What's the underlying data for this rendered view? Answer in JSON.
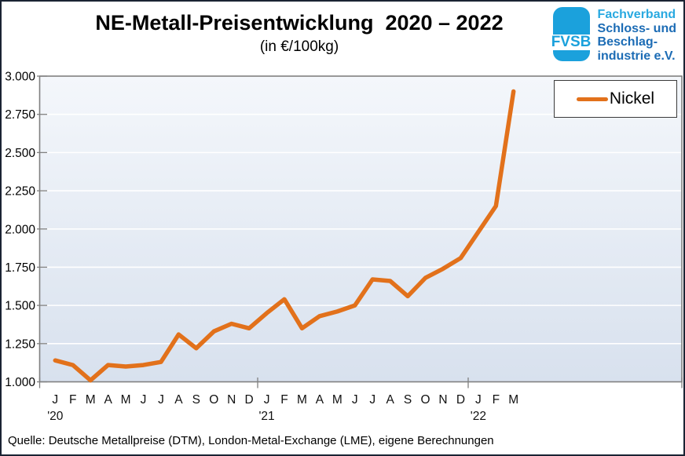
{
  "header": {
    "title": "NE-Metall-Preisentwicklung  2020 – 2022",
    "subtitle": "(in €/100kg)",
    "logo": {
      "acronym": "FVSB",
      "line1": "Fachverband",
      "line2": "Schloss- und",
      "line3": "Beschlag-",
      "line4": "industrie e.V.",
      "brand_blue": "#1BA1DC",
      "brand_dark_blue": "#1C6CB5"
    }
  },
  "legend": {
    "label": "Nickel"
  },
  "footer": {
    "source": "Quelle: Deutsche Metallpreise (DTM), London-Metal-Exchange (LME), eigene Berechnungen"
  },
  "chart_data": {
    "type": "line",
    "title": "NE-Metall-Preisentwicklung 2020 – 2022",
    "subtitle": "(in €/100kg)",
    "ylabel": "€/100kg",
    "y_min": 1.0,
    "y_max": 3.0,
    "y_step": 0.25,
    "y_tick_labels": [
      "3.000",
      "2.750",
      "2.500",
      "2.250",
      "2.000",
      "1.750",
      "1.500",
      "1.250",
      "1.000"
    ],
    "grid": "horizontal-white-gridlines",
    "legend_position": "top-right",
    "x_labels": [
      "J",
      "F",
      "M",
      "A",
      "M",
      "J",
      "J",
      "A",
      "S",
      "O",
      "N",
      "D",
      "J",
      "F",
      "M",
      "A",
      "M",
      "J",
      "J",
      "A",
      "S",
      "O",
      "N",
      "D",
      "J",
      "F",
      "M"
    ],
    "year_labels": [
      {
        "label": "'20",
        "month_index": 0
      },
      {
        "label": "'21",
        "month_index": 12
      },
      {
        "label": "'22",
        "month_index": 24
      }
    ],
    "series": [
      {
        "name": "Nickel",
        "color": "#E2711B",
        "values": [
          1.14,
          1.11,
          1.01,
          1.11,
          1.1,
          1.11,
          1.13,
          1.31,
          1.22,
          1.33,
          1.38,
          1.35,
          1.45,
          1.54,
          1.35,
          1.43,
          1.46,
          1.5,
          1.67,
          1.66,
          1.56,
          1.68,
          1.74,
          1.81,
          1.98,
          2.15,
          2.9
        ]
      }
    ]
  }
}
